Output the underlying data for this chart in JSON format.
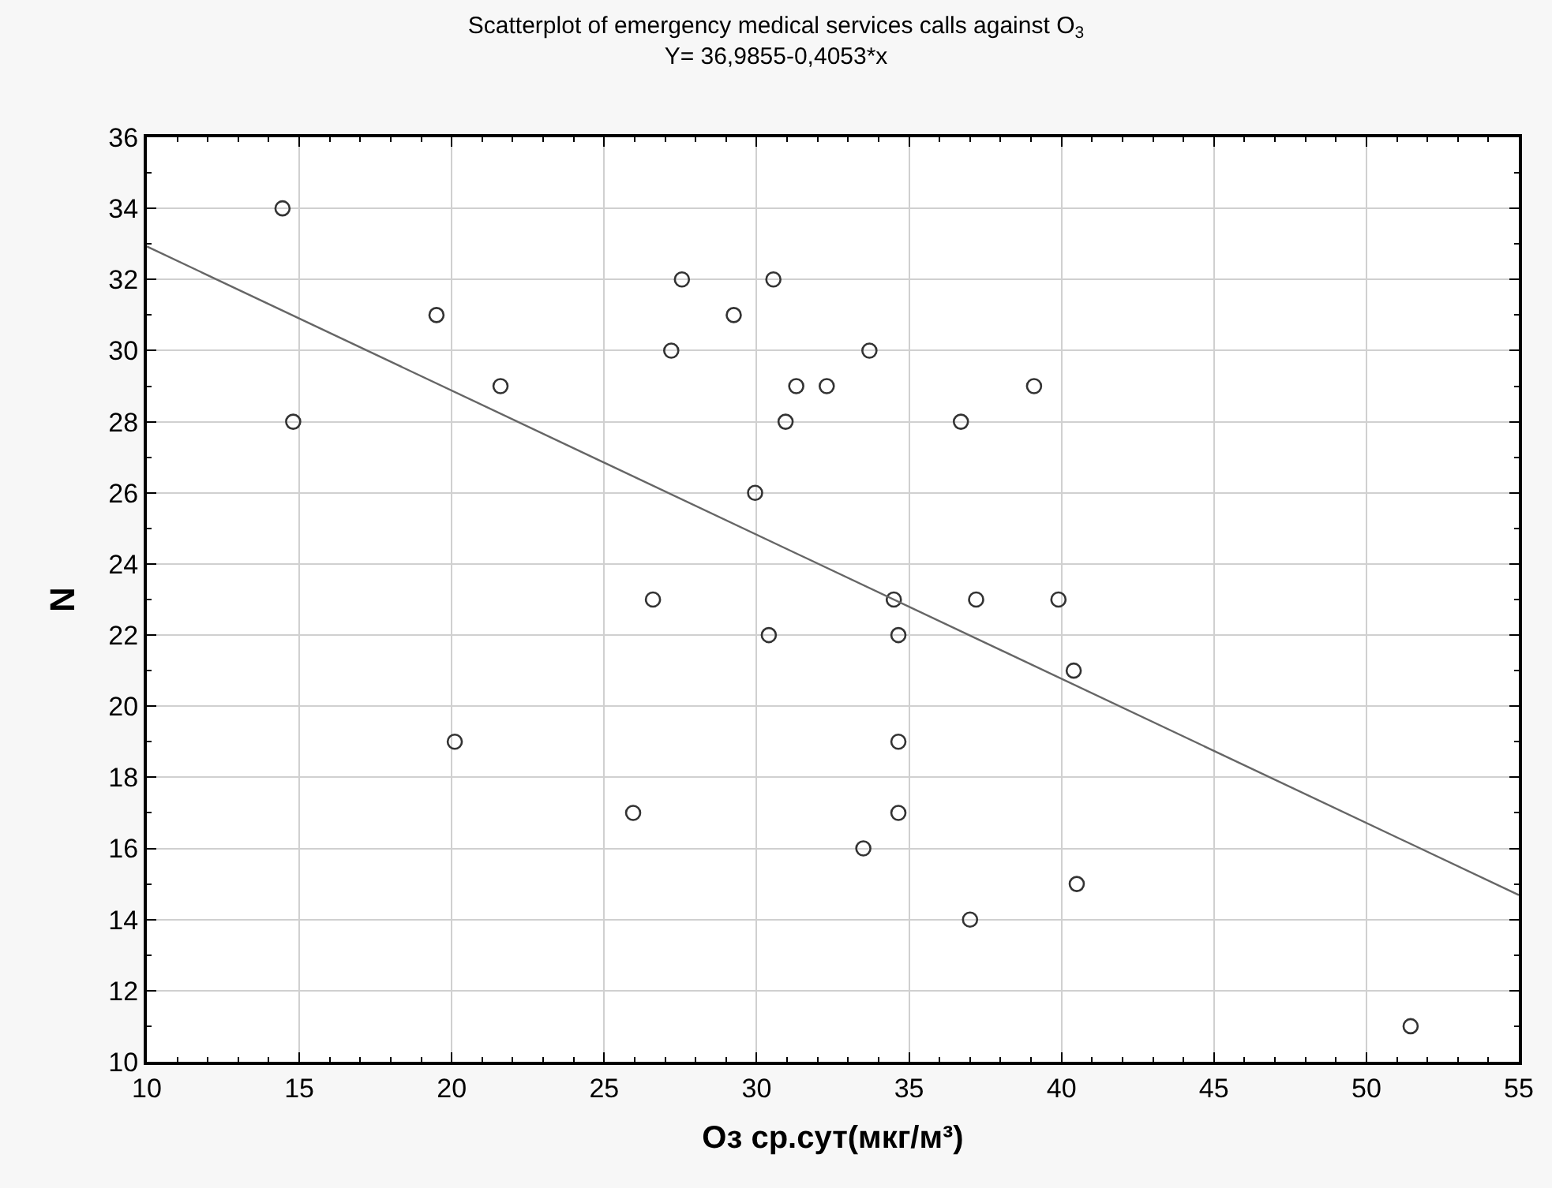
{
  "chart_data": {
    "type": "scatter",
    "title": "Scatterplot of emergency medical services calls against O$_{3}$",
    "subtitle": "Y= 36,9855-0,4053*x",
    "xlabel": "Оз ср.сут(мкг/м³)",
    "ylabel": "N",
    "x": [
      14.45,
      14.8,
      19.5,
      21.6,
      27.2,
      27.55,
      29.25,
      30.55,
      30.95,
      31.3,
      32.3,
      33.7,
      36.7,
      39.1,
      29.95,
      26.6,
      34.5,
      37.2,
      39.9,
      30.4,
      34.65,
      40.4,
      20.1,
      34.65,
      25.95,
      34.65,
      33.5,
      37.0,
      40.5,
      51.45
    ],
    "values": [
      34,
      28,
      31,
      29,
      30,
      32,
      31,
      32,
      28,
      29,
      29,
      30,
      28,
      29,
      26,
      23,
      23,
      23,
      23,
      22,
      22,
      21,
      19,
      19,
      17,
      17,
      16,
      14,
      15,
      11
    ],
    "color": "#333333",
    "marker": "circle",
    "series": [
      {
        "type": "line",
        "x": [
          10,
          55
        ],
        "values": [
          32.93,
          14.69
        ],
        "color": "#666666",
        "line_style": "solid",
        "marker": "none"
      }
    ],
    "xlim": [
      10,
      55
    ],
    "xticks": [
      10,
      15,
      20,
      25,
      30,
      35,
      40,
      45,
      50,
      55
    ],
    "ylim": [
      10,
      36
    ],
    "yticks": [
      10,
      12,
      14,
      16,
      18,
      20,
      22,
      24,
      26,
      28,
      30,
      32,
      34,
      36
    ],
    "grid": true
  }
}
